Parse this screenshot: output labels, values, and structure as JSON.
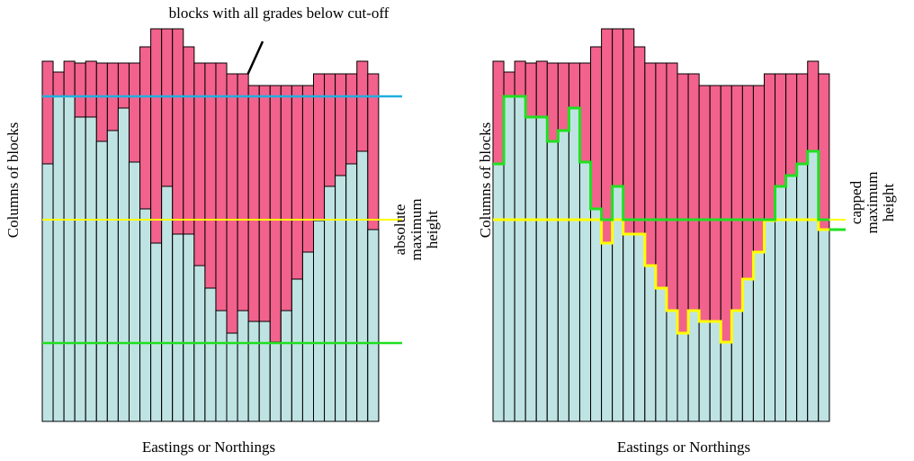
{
  "annotation": "blocks with all grades below cut-off",
  "panels": [
    {
      "y_label": "Columns of blocks",
      "x_label": "Eastings or Northings",
      "side_label": [
        "absolute",
        "maximum",
        "height"
      ]
    },
    {
      "y_label": "Columns of blocks",
      "x_label": "Eastings or Northings",
      "side_label": [
        "capped",
        "maximum",
        "height"
      ]
    }
  ]
}
